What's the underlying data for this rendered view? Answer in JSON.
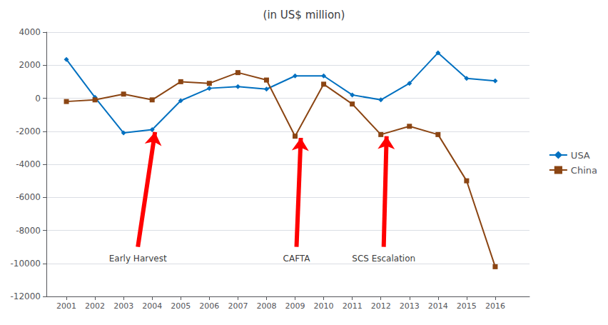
{
  "chart_data": {
    "type": "line",
    "title": "(in US$ million)",
    "x": [
      2001,
      2002,
      2003,
      2004,
      2005,
      2006,
      2007,
      2008,
      2009,
      2010,
      2011,
      2012,
      2013,
      2014,
      2015,
      2016
    ],
    "series": [
      {
        "name": "USA",
        "color": "#0070C0",
        "marker": "diamond",
        "values": [
          2350,
          50,
          -2100,
          -1900,
          -150,
          600,
          700,
          550,
          1350,
          1350,
          200,
          -100,
          900,
          2750,
          1200,
          1050
        ]
      },
      {
        "name": "China",
        "color": "#8B4513",
        "marker": "square",
        "values": [
          -200,
          -100,
          250,
          -100,
          1000,
          900,
          1550,
          1100,
          -2300,
          850,
          -350,
          -2200,
          -1700,
          -2200,
          -5000,
          -10200
        ]
      }
    ],
    "xlim": [
      2000.3,
      2017.2
    ],
    "xticks": [
      2001,
      2002,
      2003,
      2004,
      2005,
      2006,
      2007,
      2008,
      2009,
      2010,
      2011,
      2012,
      2013,
      2014,
      2015,
      2016
    ],
    "ylim": [
      -12000,
      4000
    ],
    "yticks": [
      -12000,
      -10000,
      -8000,
      -6000,
      -4000,
      -2000,
      0,
      2000,
      4000
    ],
    "grid": true,
    "legend": "right",
    "annotations": [
      {
        "text": "Early Harvest",
        "x": 2003.5,
        "y": -9350,
        "color": "red",
        "arrow": {
          "x_tail": 2003.5,
          "y_tail": -9000,
          "x_head": 2004.1,
          "y_head": -2050
        }
      },
      {
        "text": "CAFTA",
        "x": 2009.05,
        "y": -9350,
        "color": "red",
        "arrow": {
          "x_tail": 2009.05,
          "y_tail": -9000,
          "x_head": 2009.2,
          "y_head": -2400
        }
      },
      {
        "text": "SCS Escalation",
        "x": 2012.1,
        "y": -9350,
        "color": "red",
        "arrow": {
          "x_tail": 2012.1,
          "y_tail": -9000,
          "x_head": 2012.2,
          "y_head": -2300
        }
      }
    ]
  }
}
